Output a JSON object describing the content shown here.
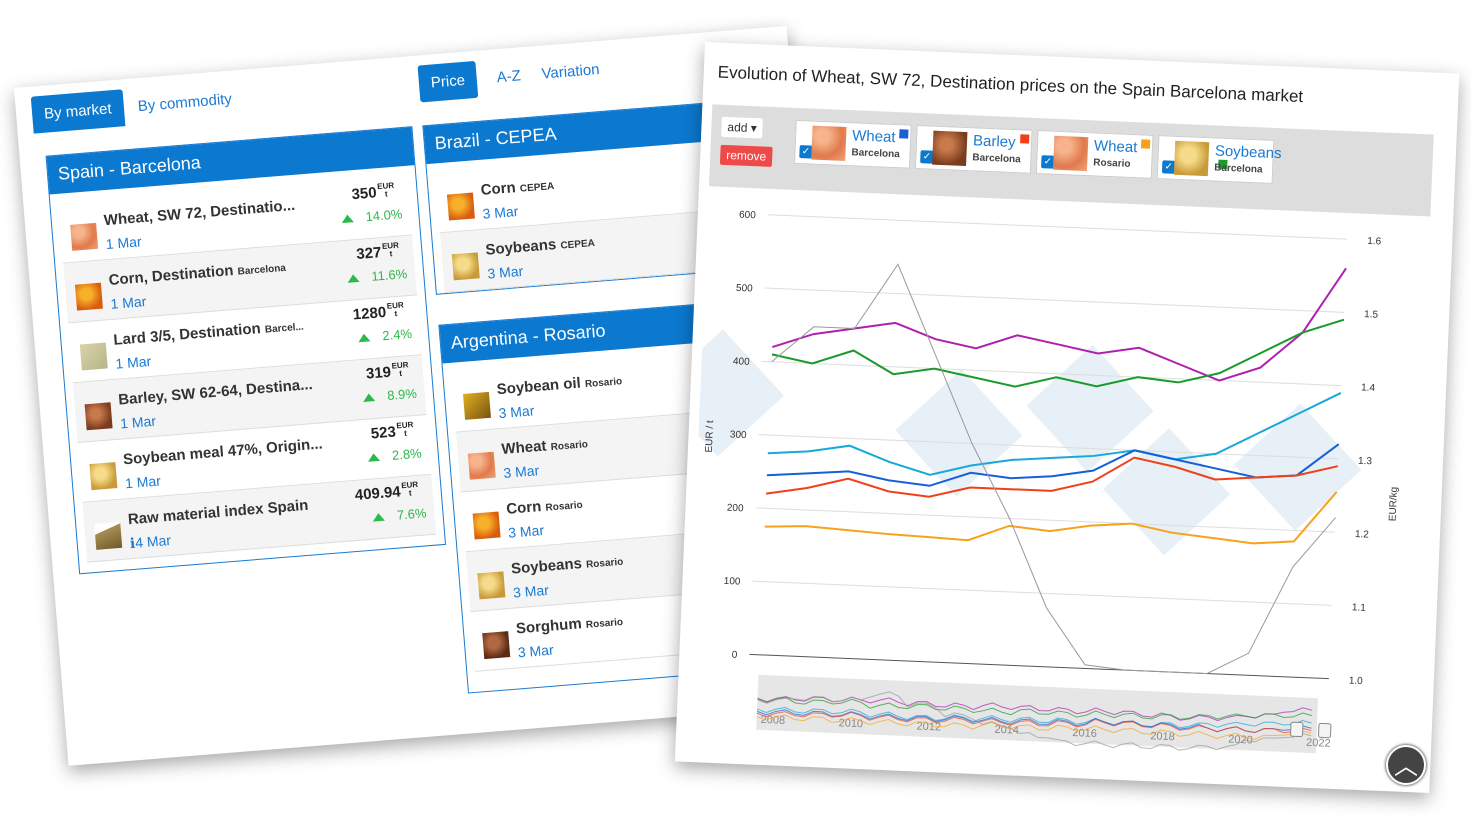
{
  "tabs": {
    "by_market": "By market",
    "by_commodity": "By commodity",
    "price": "Price",
    "az": "A-Z",
    "variation": "Variation"
  },
  "markets": [
    {
      "name": "Spain - Barcelona",
      "items": [
        {
          "name": "Wheat, SW 72, Destinatio...",
          "loc": "",
          "date": "1 Mar",
          "price": "350",
          "unit_top": "EUR",
          "unit_bot": "t",
          "var": "14.0%",
          "img": "wheat"
        },
        {
          "name": "Corn, Destination",
          "loc": "Barcelona",
          "date": "1 Mar",
          "price": "327",
          "unit_top": "EUR",
          "unit_bot": "t",
          "var": "11.6%",
          "img": "corn"
        },
        {
          "name": "Lard 3/5, Destination",
          "loc": "Barcel...",
          "date": "1 Mar",
          "price": "1280",
          "unit_top": "EUR",
          "unit_bot": "t",
          "var": "2.4%",
          "img": "lard"
        },
        {
          "name": "Barley, SW 62-64, Destina...",
          "loc": "",
          "date": "1 Mar",
          "price": "319",
          "unit_top": "EUR",
          "unit_bot": "t",
          "var": "8.9%",
          "img": "barley"
        },
        {
          "name": "Soybean meal 47%, Origin...",
          "loc": "",
          "date": "1 Mar",
          "price": "523",
          "unit_top": "EUR",
          "unit_bot": "t",
          "var": "2.8%",
          "img": "soy"
        },
        {
          "name": "Raw material index Spain",
          "loc": "",
          "date": "ℹ4 Mar",
          "price": "409.94",
          "unit_top": "EUR",
          "unit_bot": "t",
          "var": "7.6%",
          "img": "idx"
        }
      ]
    },
    {
      "name": "Brazil - CEPEA",
      "items": [
        {
          "name": "Corn",
          "loc": "CEPEA",
          "date": "3 Mar",
          "img": "corn"
        },
        {
          "name": "Soybeans",
          "loc": "CEPEA",
          "date": "3 Mar",
          "img": "soy"
        }
      ]
    },
    {
      "name": "Argentina - Rosario",
      "items": [
        {
          "name": "Soybean oil",
          "loc": "Rosario",
          "date": "3 Mar",
          "img": "oil"
        },
        {
          "name": "Wheat",
          "loc": "Rosario",
          "date": "3 Mar",
          "img": "wheat"
        },
        {
          "name": "Corn",
          "loc": "Rosario",
          "date": "3 Mar",
          "img": "corn"
        },
        {
          "name": "Soybeans",
          "loc": "Rosario",
          "date": "3 Mar",
          "img": "soy"
        },
        {
          "name": "Sorghum",
          "loc": "Rosario",
          "date": "3 Mar",
          "img": "sorg"
        }
      ]
    }
  ],
  "chart_panel": {
    "title": "Evolution of Wheat, SW 72, Destination prices on the Spain Barcelona market",
    "add": "add ▾",
    "remove": "remove",
    "legend": [
      {
        "name": "Wheat",
        "market": "Barcelona",
        "color": "#1560d8",
        "img": "wheat"
      },
      {
        "name": "Barley",
        "market": "Barcelona",
        "color": "#f0401a",
        "img": "barley"
      },
      {
        "name": "Wheat",
        "market": "Rosario",
        "color": "#f7a21b",
        "img": "wheat"
      },
      {
        "name": "Soybeans",
        "market": "Barcelona",
        "color": "#1a9a2a",
        "img": "soy"
      }
    ]
  },
  "chart_data": {
    "type": "line",
    "ylabel": "EUR / t",
    "y2label": "EUR/kg",
    "ylim": [
      0,
      600
    ],
    "y2lim": [
      1.0,
      1.6
    ],
    "yticks": [
      "0",
      "100",
      "200",
      "300",
      "400",
      "500",
      "600"
    ],
    "y2ticks": [
      "1.0",
      "1.1",
      "1.2",
      "1.3",
      "1.4",
      "1.5",
      "1.6"
    ],
    "navigator_ticks": [
      "2008",
      "2010",
      "2012",
      "2014",
      "2016",
      "2018",
      "2020",
      "2022"
    ],
    "series": [
      {
        "name": "",
        "color": "#b020b0",
        "values": [
          420,
          440,
          450,
          460,
          440,
          430,
          450,
          440,
          430,
          440,
          420,
          400,
          420,
          470,
          560
        ]
      },
      {
        "name": "Soybeans Barcelona",
        "color": "#1a9a2a",
        "values": [
          410,
          400,
          420,
          390,
          400,
          390,
          380,
          395,
          385,
          400,
          395,
          410,
          440,
          470,
          490
        ]
      },
      {
        "name": "",
        "color": "#18a8d8",
        "values": [
          275,
          280,
          290,
          270,
          255,
          270,
          280,
          285,
          290,
          300,
          290,
          300,
          330,
          360,
          390
        ]
      },
      {
        "name": "Wheat Barcelona",
        "color": "#1560d8",
        "values": [
          245,
          250,
          255,
          245,
          240,
          260,
          255,
          260,
          270,
          300,
          290,
          280,
          270,
          275,
          320
        ]
      },
      {
        "name": "Barley Barcelona",
        "color": "#f0401a",
        "values": [
          220,
          230,
          245,
          230,
          225,
          240,
          240,
          240,
          255,
          290,
          280,
          265,
          270,
          275,
          290
        ]
      },
      {
        "name": "Wheat Rosario",
        "color": "#f7a21b",
        "values": [
          175,
          178,
          175,
          172,
          170,
          168,
          190,
          185,
          195,
          200,
          190,
          185,
          180,
          185,
          255
        ]
      },
      {
        "name": "",
        "color": "#999999",
        "values": [
          400,
          450,
          450,
          540,
          420,
          300,
          200,
          80,
          5,
          0,
          0,
          0,
          30,
          150,
          220
        ]
      }
    ]
  }
}
